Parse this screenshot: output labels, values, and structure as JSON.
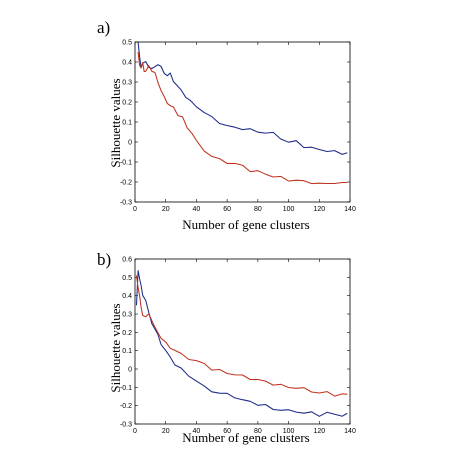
{
  "figure": {
    "panels": [
      {
        "label": "a)"
      },
      {
        "label": "b)"
      }
    ]
  },
  "chart_data": [
    {
      "type": "line",
      "panel": "a)",
      "xlabel": "Number of gene clusters",
      "ylabel": "Silhouette values",
      "xlim": [
        0,
        140
      ],
      "ylim": [
        -0.3,
        0.5
      ],
      "xticks": [
        "0",
        "20",
        "40",
        "60",
        "80",
        "100",
        "120",
        "140"
      ],
      "yticks": [
        "0.5",
        "0.4",
        "0.3",
        "0.2",
        "0.1",
        "0",
        "-0.1",
        "-0.2",
        "-0.3"
      ],
      "grid": false,
      "series": [
        {
          "color": "#1c2a8a",
          "x": [
            2,
            3,
            4,
            5,
            7,
            9,
            11,
            13,
            15,
            17,
            19,
            21,
            23,
            25,
            27,
            30,
            33,
            36,
            40,
            45,
            50,
            55,
            60,
            65,
            70,
            75,
            80,
            85,
            90,
            95,
            100,
            105,
            110,
            115,
            120,
            125,
            130,
            135,
            138
          ],
          "y": [
            0.5,
            0.42,
            0.38,
            0.39,
            0.4,
            0.38,
            0.36,
            0.38,
            0.39,
            0.37,
            0.35,
            0.33,
            0.34,
            0.31,
            0.28,
            0.26,
            0.23,
            0.2,
            0.18,
            0.15,
            0.12,
            0.1,
            0.08,
            0.07,
            0.07,
            0.06,
            0.05,
            0.05,
            0.04,
            0.02,
            0.0,
            0.0,
            -0.02,
            -0.03,
            -0.04,
            -0.04,
            -0.05,
            -0.06,
            -0.05
          ]
        },
        {
          "color": "#c0321e",
          "x": [
            2,
            3,
            4,
            5,
            6,
            7,
            9,
            11,
            13,
            15,
            17,
            19,
            21,
            23,
            25,
            28,
            31,
            34,
            37,
            40,
            45,
            50,
            55,
            60,
            65,
            70,
            75,
            80,
            85,
            90,
            95,
            100,
            105,
            110,
            115,
            120,
            125,
            130,
            135,
            138
          ],
          "y": [
            0.44,
            0.39,
            0.37,
            0.39,
            0.36,
            0.35,
            0.38,
            0.36,
            0.34,
            0.3,
            0.26,
            0.22,
            0.2,
            0.18,
            0.17,
            0.14,
            0.12,
            0.07,
            0.05,
            0.0,
            -0.04,
            -0.07,
            -0.09,
            -0.1,
            -0.11,
            -0.12,
            -0.14,
            -0.15,
            -0.16,
            -0.17,
            -0.18,
            -0.19,
            -0.19,
            -0.2,
            -0.2,
            -0.21,
            -0.21,
            -0.2,
            -0.21,
            -0.2
          ]
        }
      ]
    },
    {
      "type": "line",
      "panel": "b)",
      "xlabel": "Number of gene clusters",
      "ylabel": "Silhouette values",
      "xlim": [
        0,
        140
      ],
      "ylim": [
        -0.3,
        0.6
      ],
      "xticks": [
        "0",
        "20",
        "40",
        "60",
        "80",
        "100",
        "120",
        "140"
      ],
      "yticks": [
        "0.6",
        "0.5",
        "0.4",
        "0.3",
        "0.2",
        "0.1",
        "0",
        "-0.1",
        "-0.2",
        "-0.3"
      ],
      "grid": false,
      "series": [
        {
          "color": "#1c2a8a",
          "x": [
            1,
            2,
            3,
            4,
            5,
            7,
            9,
            11,
            13,
            15,
            17,
            20,
            23,
            26,
            30,
            35,
            40,
            45,
            50,
            55,
            60,
            65,
            70,
            75,
            80,
            85,
            90,
            95,
            100,
            105,
            110,
            115,
            120,
            125,
            130,
            135,
            138
          ],
          "y": [
            0.35,
            0.53,
            0.5,
            0.45,
            0.4,
            0.38,
            0.3,
            0.25,
            0.22,
            0.18,
            0.14,
            0.1,
            0.06,
            0.03,
            0.0,
            -0.04,
            -0.06,
            -0.1,
            -0.12,
            -0.13,
            -0.14,
            -0.15,
            -0.17,
            -0.18,
            -0.19,
            -0.2,
            -0.22,
            -0.22,
            -0.23,
            -0.23,
            -0.24,
            -0.24,
            -0.25,
            -0.24,
            -0.25,
            -0.25,
            -0.25
          ]
        },
        {
          "color": "#c0321e",
          "x": [
            1,
            2,
            3,
            4,
            5,
            7,
            9,
            11,
            13,
            15,
            17,
            20,
            23,
            26,
            30,
            35,
            40,
            45,
            50,
            55,
            60,
            65,
            70,
            75,
            80,
            85,
            90,
            95,
            100,
            105,
            110,
            115,
            120,
            125,
            130,
            135,
            138
          ],
          "y": [
            0.5,
            0.45,
            0.4,
            0.33,
            0.3,
            0.28,
            0.3,
            0.27,
            0.22,
            0.2,
            0.17,
            0.14,
            0.12,
            0.1,
            0.08,
            0.06,
            0.04,
            0.03,
            0.0,
            -0.01,
            -0.02,
            -0.03,
            -0.04,
            -0.05,
            -0.06,
            -0.07,
            -0.08,
            -0.09,
            -0.1,
            -0.1,
            -0.11,
            -0.12,
            -0.13,
            -0.13,
            -0.14,
            -0.14,
            -0.14
          ]
        }
      ]
    }
  ]
}
